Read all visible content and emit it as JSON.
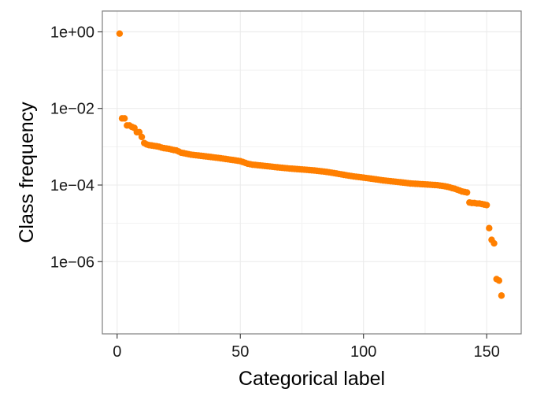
{
  "chart_data": {
    "type": "scatter",
    "xlabel": "Categorical label",
    "ylabel": "Class frequency",
    "x_ticks": [
      0,
      50,
      100,
      150
    ],
    "x_tick_labels": [
      "0",
      "50",
      "100",
      "150"
    ],
    "y_scale": "log10",
    "y_ticks": [
      1,
      0.01,
      0.0001,
      1e-06
    ],
    "y_tick_labels": [
      "1e+00",
      "1e−02",
      "1e−04",
      "1e−06"
    ],
    "xlim": [
      -6,
      164
    ],
    "ylim": [
      1.3e-08,
      3.5
    ],
    "grid": true,
    "legend": "none",
    "point_color": "#FF7F00",
    "series": [
      {
        "x": [
          1,
          2,
          3,
          4,
          5,
          6,
          7,
          8,
          9,
          10,
          11,
          12,
          13,
          14,
          15,
          16,
          17,
          18,
          19,
          20,
          21,
          22,
          23,
          24,
          25,
          26,
          27,
          28,
          29,
          30,
          31,
          32,
          33,
          34,
          35,
          36,
          37,
          38,
          39,
          40,
          41,
          42,
          43,
          44,
          45,
          46,
          47,
          48,
          49,
          50,
          51,
          52,
          53,
          54,
          55,
          56,
          57,
          58,
          59,
          60,
          61,
          62,
          63,
          64,
          65,
          66,
          67,
          68,
          69,
          70,
          71,
          72,
          73,
          74,
          75,
          76,
          77,
          78,
          79,
          80,
          81,
          82,
          83,
          84,
          85,
          86,
          87,
          88,
          89,
          90,
          91,
          92,
          93,
          94,
          95,
          96,
          97,
          98,
          99,
          100,
          101,
          102,
          103,
          104,
          105,
          106,
          107,
          108,
          109,
          110,
          111,
          112,
          113,
          114,
          115,
          116,
          117,
          118,
          119,
          120,
          121,
          122,
          123,
          124,
          125,
          126,
          127,
          128,
          129,
          130,
          131,
          132,
          133,
          134,
          135,
          136,
          137,
          138,
          139,
          140,
          141,
          142,
          143,
          144,
          145,
          146,
          147,
          148,
          149,
          150,
          151,
          152,
          153,
          154,
          155,
          156
        ],
        "y": [
          0.9,
          0.0055,
          0.0055,
          0.0036,
          0.0036,
          0.0033,
          0.0031,
          0.0024,
          0.0024,
          0.0018,
          0.00125,
          0.00115,
          0.0011,
          0.00108,
          0.00105,
          0.00103,
          0.001,
          0.00095,
          0.00092,
          0.0009,
          0.00088,
          0.00085,
          0.00082,
          0.0008,
          0.00075,
          0.0007,
          0.00068,
          0.00066,
          0.00064,
          0.00062,
          0.00061,
          0.0006,
          0.00059,
          0.00058,
          0.00057,
          0.00056,
          0.00055,
          0.00054,
          0.00053,
          0.00052,
          0.00051,
          0.0005,
          0.00049,
          0.00048,
          0.00047,
          0.00046,
          0.00045,
          0.00044,
          0.00043,
          0.00042,
          0.0004,
          0.00038,
          0.00036,
          0.00035,
          0.00034,
          0.000335,
          0.00033,
          0.000325,
          0.00032,
          0.000315,
          0.00031,
          0.000305,
          0.0003,
          0.000295,
          0.00029,
          0.000286,
          0.000282,
          0.000278,
          0.000274,
          0.00027,
          0.000267,
          0.000264,
          0.000261,
          0.000258,
          0.000255,
          0.000252,
          0.000249,
          0.000246,
          0.000243,
          0.00024,
          0.000236,
          0.000232,
          0.000228,
          0.000224,
          0.00022,
          0.000215,
          0.00021,
          0.000205,
          0.0002,
          0.000195,
          0.00019,
          0.000185,
          0.00018,
          0.000176,
          0.000172,
          0.000168,
          0.000165,
          0.000162,
          0.000159,
          0.000156,
          0.000153,
          0.00015,
          0.000147,
          0.000144,
          0.000141,
          0.000138,
          0.000135,
          0.000132,
          0.00013,
          0.000128,
          0.000126,
          0.000124,
          0.000122,
          0.00012,
          0.000118,
          0.000116,
          0.000114,
          0.000112,
          0.00011,
          0.000109,
          0.000108,
          0.000107,
          0.000106,
          0.000105,
          0.000104,
          0.000103,
          0.000102,
          0.000101,
          0.0001,
          9.9e-05,
          9.7e-05,
          9.5e-05,
          9.3e-05,
          9e-05,
          8.7e-05,
          8.3e-05,
          8e-05,
          7.6e-05,
          7.2e-05,
          6.8e-05,
          6.6e-05,
          6.4e-05,
          3.5e-05,
          3.4e-05,
          3.4e-05,
          3.3e-05,
          3.3e-05,
          3.2e-05,
          3.1e-05,
          3e-05,
          7.5e-06,
          3.7e-06,
          3e-06,
          3.5e-07,
          3.2e-07,
          1.3e-07
        ]
      }
    ]
  }
}
